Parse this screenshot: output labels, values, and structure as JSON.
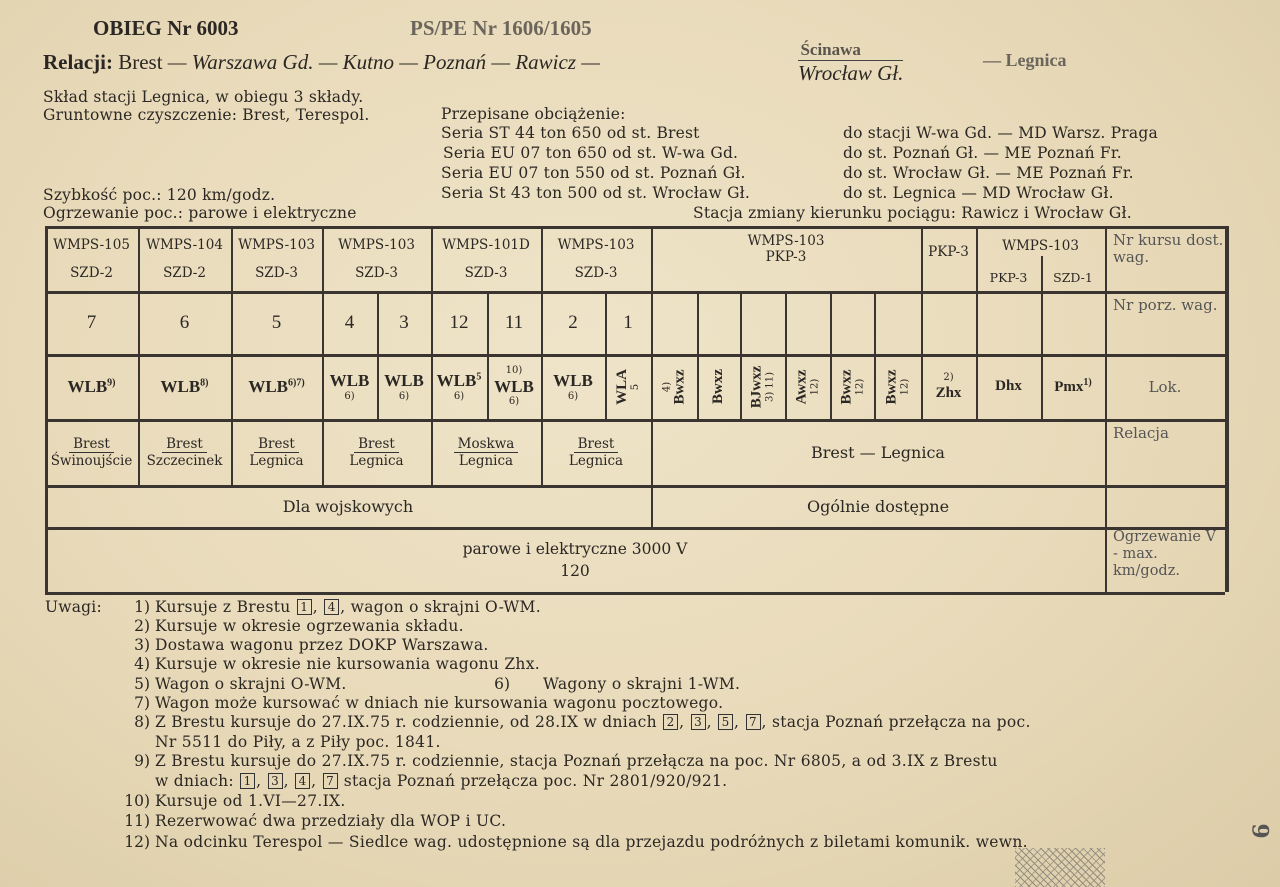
{
  "header": {
    "obieg": "OBIEG Nr 6003",
    "pspe": "PS/PE Nr 1606/1605",
    "relacji_label": "Relacji:",
    "route_start": "Brest",
    "route_mid": "— Warszawa Gd. — Kutno — Poznań — Rawicz —",
    "route_alt_top": "Ścinawa",
    "route_alt_bottom": "Wrocław Gł.",
    "route_end": "— Legnica"
  },
  "info": {
    "sklad": "Skład stacji Legnica, w obiegu 3 składy.",
    "czyszczenie": "Gruntowne czyszczenie: Brest, Terespol.",
    "szybkosc": "Szybkość poc.: 120 km/godz.",
    "ogrzewanie": "Ogrzewanie poc.: parowe i elektryczne",
    "obciazenie_title": "Przepisane obciążenie:",
    "obciazenie": [
      {
        "seria": "Seria ST 44 ton 650 od st. Brest",
        "do": "do stacji W-wa Gd. — MD Warsz. Praga"
      },
      {
        "seria": "Seria EU 07 ton 650 od st. W-wa Gd.",
        "do": "do st. Poznań Gł. — ME Poznań Fr."
      },
      {
        "seria": "Seria EU 07 ton 550 od st. Poznań Gł.",
        "do": "do st. Wrocław Gł. — ME Poznań Fr."
      },
      {
        "seria": "Seria St 43 ton 500 od st. Wrocław Gł.",
        "do": "do st. Legnica — MD Wrocław Gł."
      }
    ],
    "zmiana_kierunku": "Stacja zmiany kierunku pociągu: Rawicz i Wrocław Gł."
  },
  "table": {
    "kurs": [
      {
        "top": "WMPS-105",
        "bottom": "SZD-2"
      },
      {
        "top": "WMPS-104",
        "bottom": "SZD-2"
      },
      {
        "top": "WMPS-103",
        "bottom": "SZD-3"
      },
      {
        "top": "WMPS-103",
        "bottom": "SZD-3"
      },
      {
        "top": "WMPS-101D",
        "bottom": "SZD-3"
      },
      {
        "top": "WMPS-103",
        "bottom": "SZD-3"
      },
      {
        "top": "WMPS-103",
        "bottom": "PKP-3"
      },
      {
        "top": "PKP-3",
        "bottom": ""
      },
      {
        "top": "WMPS-103",
        "bottom": ""
      }
    ],
    "kurs_sub": [
      "PKP-3",
      "SZD-1"
    ],
    "porz": [
      "7",
      "6",
      "5",
      "4",
      "3",
      "12",
      "11",
      "2",
      "1"
    ],
    "wagony": [
      {
        "t": "WLB",
        "n": "9)"
      },
      {
        "t": "WLB",
        "n": "8)"
      },
      {
        "t": "WLB",
        "n": "6)7)"
      },
      {
        "t": "WLB",
        "n": "6)"
      },
      {
        "t": "WLB",
        "n": "6)"
      },
      {
        "t": "WLB",
        "n": "5",
        "n2": "6)"
      },
      {
        "t": "WLB",
        "n": "10)",
        "n2": "6)"
      },
      {
        "t": "WLB",
        "n": "6)"
      },
      {
        "t": "WLA",
        "n": "5"
      },
      {
        "t": "Bwxz",
        "n": "4)"
      },
      {
        "t": "Bwxz",
        "n": ""
      },
      {
        "t": "BJwxz",
        "n": "3) 11)"
      },
      {
        "t": "Awxz",
        "n": "12)"
      },
      {
        "t": "Bwxz",
        "n": "12)"
      },
      {
        "t": "Bwxz",
        "n": "12)"
      },
      {
        "t": "Zhx",
        "n": "2)"
      },
      {
        "t": "Dhx",
        "n": ""
      },
      {
        "t": "Pmx",
        "n": "1)"
      }
    ],
    "relacje": [
      {
        "a": "Brest",
        "b": "Świnoujście"
      },
      {
        "a": "Brest",
        "b": "Szczecinek"
      },
      {
        "a": "Brest",
        "b": "Legnica"
      },
      {
        "a": "Brest",
        "b": "Legnica"
      },
      {
        "a": "Moskwa",
        "b": "Legnica"
      },
      {
        "a": "Brest",
        "b": "Legnica"
      }
    ],
    "relacja_main": "Brest — Legnica",
    "dla_wojskowych": "Dla wojskowych",
    "ogolnie": "Ogólnie dostępne",
    "ogrzewanie": "parowe i elektryczne 3000 V",
    "vmax": "120",
    "labels": {
      "kurs": "Nr kursu dost. wag.",
      "porz": "Nr porz. wag.",
      "lok": "Lok.",
      "relacja": "Relacja",
      "ogrzewanie": "Ogrzewanie V - max. km/godz."
    }
  },
  "notes_label": "Uwagi:",
  "notes": [
    {
      "n": "1)",
      "parts": [
        "Kursuje z Brestu ",
        {
          "box": "1"
        },
        ", ",
        {
          "box": "4"
        },
        ", wagon o skrajni O-WM."
      ]
    },
    {
      "n": "2)",
      "parts": [
        "Kursuje w okresie ogrzewania składu."
      ]
    },
    {
      "n": "3)",
      "parts": [
        "Dostawa wagonu przez DOKP Warszawa."
      ]
    },
    {
      "n": "4)",
      "parts": [
        "Kursuje w okresie nie kursowania wagonu Zhx."
      ]
    },
    {
      "n": "5)",
      "parts": [
        "Wagon o skrajni O-WM."
      ]
    },
    {
      "n": "6)",
      "parts": [
        "Wagony o skrajni 1-WM."
      ]
    },
    {
      "n": "7)",
      "parts": [
        "Wagon może kursować w dniach nie kursowania wagonu pocztowego."
      ]
    },
    {
      "n": "8)",
      "parts": [
        "Z Brestu kursuje do 27.IX.75 r. codziennie, od 28.IX w dniach ",
        {
          "box": "2"
        },
        ", ",
        {
          "box": "3"
        },
        ", ",
        {
          "box": "5"
        },
        ", ",
        {
          "box": "7"
        },
        ", stacja Poznań przełącza na poc."
      ],
      "cont": [
        "Nr 5511 do Piły, a z Piły poc. 1841."
      ]
    },
    {
      "n": "9)",
      "parts": [
        "Z Brestu kursuje do 27.IX.75 r. codziennie, stacja Poznań przełącza na poc. Nr 6805, a od 3.IX z Brestu"
      ],
      "cont": [
        "w dniach: ",
        {
          "box": "1"
        },
        ", ",
        {
          "box": "3"
        },
        ", ",
        {
          "box": "4"
        },
        ", ",
        {
          "box": "7"
        },
        " stacja Poznań przełącza poc. Nr 2801/920/921."
      ]
    },
    {
      "n": "10)",
      "parts": [
        "Kursuje od 1.VI—27.IX."
      ]
    },
    {
      "n": "11)",
      "parts": [
        "Rezerwować dwa przedziały dla WOP i UC."
      ]
    },
    {
      "n": "12)",
      "parts": [
        "Na odcinku Terespol — Siedlce wag. udostępnione są dla przejazdu podróżnych z biletami komunik. wewn."
      ]
    }
  ],
  "page_number": "9"
}
